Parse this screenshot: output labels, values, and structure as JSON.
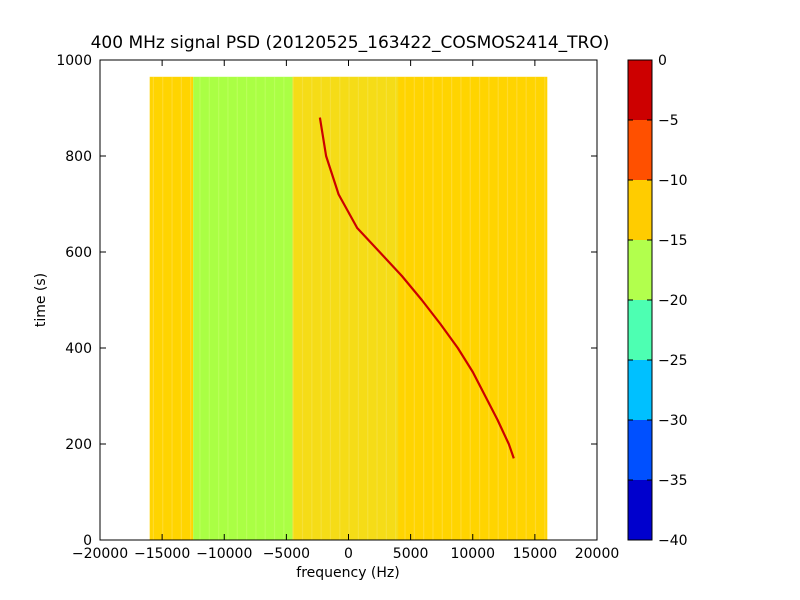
{
  "chart_data": {
    "type": "heatmap",
    "title": "400 MHz signal PSD (20120525_163422_COSMOS2414_TRO)",
    "xlabel": "frequency (Hz)",
    "ylabel": "time (s)",
    "xlim": [
      -20000,
      20000
    ],
    "ylim": [
      0,
      1000
    ],
    "x_ticks": [
      -20000,
      -15000,
      -10000,
      -5000,
      0,
      5000,
      10000,
      15000,
      20000
    ],
    "x_tick_labels": [
      "−20000",
      "−15000",
      "−10000",
      "−5000",
      "0",
      "5000",
      "10000",
      "15000",
      "20000"
    ],
    "y_ticks": [
      0,
      200,
      400,
      600,
      800,
      1000
    ],
    "y_tick_labels": [
      "0",
      "200",
      "400",
      "600",
      "800",
      "1000"
    ],
    "data_extent": {
      "x": [
        -16000,
        16000
      ],
      "y": [
        0,
        965
      ]
    },
    "colorbar": {
      "levels": [
        -40,
        -35,
        -30,
        -25,
        -20,
        -15,
        -10,
        -5,
        0
      ],
      "tick_labels": [
        "−40",
        "−35",
        "−30",
        "−25",
        "−20",
        "−15",
        "−10",
        "−5",
        "0"
      ],
      "colors": [
        "#0000cd",
        "#0050ff",
        "#00c0ff",
        "#4dffb2",
        "#b2ff4d",
        "#ffcc00",
        "#ff5000",
        "#cd0000"
      ]
    },
    "regions": [
      {
        "x": [
          -16000,
          -12500
        ],
        "level": "-15 to -10",
        "color": "#ffd400"
      },
      {
        "x": [
          -12500,
          -4500
        ],
        "level": "-20 to -15",
        "color": "#aaff44"
      },
      {
        "x": [
          -4500,
          16000
        ],
        "level": "-15 to -10",
        "color": "#ffd400"
      }
    ],
    "signal_trace": {
      "color": "#cc0000",
      "points": [
        {
          "t": 880,
          "f": -2300
        },
        {
          "t": 800,
          "f": -1800
        },
        {
          "t": 720,
          "f": -800
        },
        {
          "t": 650,
          "f": 700
        },
        {
          "t": 600,
          "f": 2500
        },
        {
          "t": 550,
          "f": 4300
        },
        {
          "t": 500,
          "f": 5900
        },
        {
          "t": 450,
          "f": 7400
        },
        {
          "t": 400,
          "f": 8800
        },
        {
          "t": 350,
          "f": 10000
        },
        {
          "t": 300,
          "f": 11000
        },
        {
          "t": 250,
          "f": 12000
        },
        {
          "t": 200,
          "f": 12900
        },
        {
          "t": 170,
          "f": 13300
        }
      ]
    },
    "grid": false
  }
}
